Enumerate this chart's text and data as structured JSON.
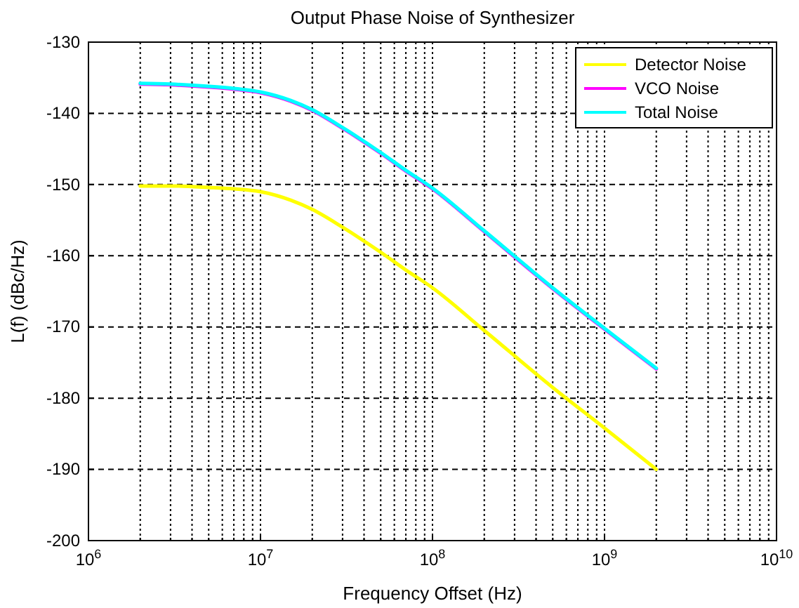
{
  "chart_data": {
    "type": "line",
    "title": "Output Phase Noise of Synthesizer",
    "xlabel": "Frequency Offset (Hz)",
    "ylabel": "L(f) (dBc/Hz)",
    "log": "x",
    "grid": true,
    "legend": "top right",
    "line_style": "solid",
    "marker": "none",
    "x": [
      2000000,
      3000000,
      5000000,
      7000000,
      10000000,
      15000000,
      20000000,
      30000000,
      50000000,
      70000000,
      100000000,
      200000000,
      500000000,
      1000000000,
      2000000000
    ],
    "series": [
      {
        "name": "Detector Noise",
        "color": "#ffff00",
        "values": [
          -150.2,
          -150.2,
          -150.4,
          -150.6,
          -151,
          -152.2,
          -153.5,
          -156,
          -159.5,
          -162,
          -164.5,
          -170.5,
          -178.5,
          -184.2,
          -190
        ]
      },
      {
        "name": "VCO Noise",
        "color": "#ff00ff",
        "values": [
          -135.9,
          -136,
          -136.3,
          -136.6,
          -137.1,
          -138.3,
          -139.6,
          -142.1,
          -145.6,
          -148.1,
          -150.6,
          -156.6,
          -164.6,
          -170.3,
          -175.9
        ]
      },
      {
        "name": "Total Noise",
        "color": "#00ffff",
        "values": [
          -135.8,
          -135.9,
          -136.2,
          -136.5,
          -137,
          -138.2,
          -139.5,
          -142,
          -145.5,
          -148,
          -150.5,
          -156.5,
          -164.5,
          -170.2,
          -175.8
        ]
      }
    ],
    "xlim": [
      1000000,
      10000000000
    ],
    "ylim": [
      -200,
      -130
    ],
    "xticks": [
      {
        "value": 1000000,
        "label": "10$^{6}$"
      },
      {
        "value": 2000000,
        "label": null
      },
      {
        "value": 3000000,
        "label": null
      },
      {
        "value": 4000000,
        "label": null
      },
      {
        "value": 5000000,
        "label": null
      },
      {
        "value": 6000000,
        "label": null
      },
      {
        "value": 7000000,
        "label": null
      },
      {
        "value": 8000000,
        "label": null
      },
      {
        "value": 9000000,
        "label": null
      },
      {
        "value": 10000000,
        "label": "10$^{7}$"
      },
      {
        "value": 20000000,
        "label": null
      },
      {
        "value": 30000000,
        "label": null
      },
      {
        "value": 40000000,
        "label": null
      },
      {
        "value": 50000000,
        "label": null
      },
      {
        "value": 60000000,
        "label": null
      },
      {
        "value": 70000000,
        "label": null
      },
      {
        "value": 80000000,
        "label": null
      },
      {
        "value": 90000000,
        "label": null
      },
      {
        "value": 100000000,
        "label": "10$^{8}$"
      },
      {
        "value": 200000000,
        "label": null
      },
      {
        "value": 300000000,
        "label": null
      },
      {
        "value": 400000000,
        "label": null
      },
      {
        "value": 500000000,
        "label": null
      },
      {
        "value": 600000000,
        "label": null
      },
      {
        "value": 700000000,
        "label": null
      },
      {
        "value": 800000000,
        "label": null
      },
      {
        "value": 900000000,
        "label": null
      },
      {
        "value": 1000000000,
        "label": "10$^{9}$"
      },
      {
        "value": 2000000000,
        "label": null
      },
      {
        "value": 3000000000,
        "label": null
      },
      {
        "value": 4000000000,
        "label": null
      },
      {
        "value": 5000000000,
        "label": null
      },
      {
        "value": 6000000000,
        "label": null
      },
      {
        "value": 7000000000,
        "label": null
      },
      {
        "value": 8000000000,
        "label": null
      },
      {
        "value": 9000000000,
        "label": null
      },
      {
        "value": 10000000000,
        "label": "10$^{10}$"
      }
    ],
    "yticks": [
      -200,
      -190,
      -180,
      -170,
      -160,
      -150,
      -140,
      -130
    ]
  }
}
